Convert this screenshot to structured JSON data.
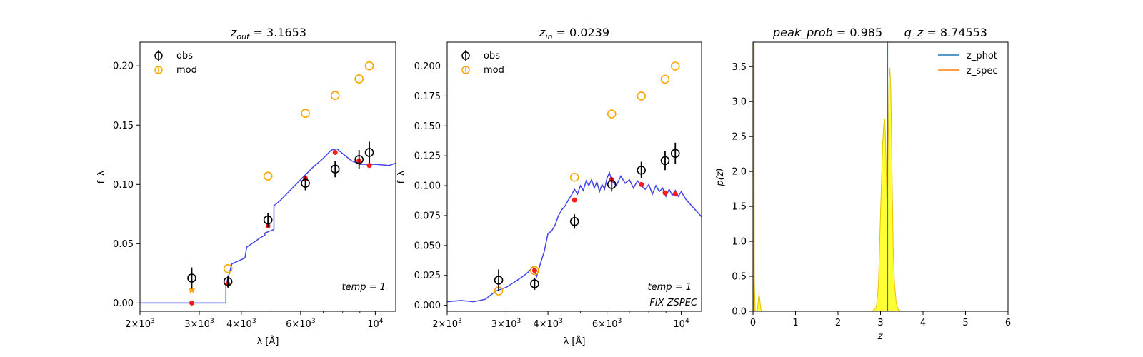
{
  "colors": {
    "obs": "#000000",
    "mod": "#ffa500",
    "model_dot": "#ff1a1a",
    "sed": "#3a3ae8",
    "z_phot": "#1f77b4",
    "z_spec": "#ff7f0e",
    "pz_fill": "#ffff33"
  },
  "chart_data": [
    {
      "type": "scatter",
      "title": "z_out = 3.1653",
      "title_parts": {
        "sym": "z",
        "sub": "out",
        "value": "= 3.1653"
      },
      "xlabel": "λ [Å]",
      "ylabel": "f_λ",
      "xscale": "log",
      "xlim": [
        2000,
        11500
      ],
      "ylim": [
        -0.007,
        0.22
      ],
      "xticks": [
        {
          "v": 2000,
          "m": "2",
          "e": "3"
        },
        {
          "v": 3000,
          "m": "3",
          "e": "3"
        },
        {
          "v": 4000,
          "m": "4",
          "e": "3"
        },
        {
          "v": 6000,
          "m": "6",
          "e": "3"
        },
        {
          "v": 10000,
          "m": "",
          "e": "4"
        }
      ],
      "yticks": [
        "0.00",
        "0.05",
        "0.10",
        "0.15",
        "0.20"
      ],
      "legend": [
        "obs",
        "mod"
      ],
      "legend_placement": "top-left",
      "annotations": [
        "temp = 1"
      ],
      "series": [
        {
          "name": "obs",
          "x": [
            2850,
            3650,
            4800,
            6200,
            7600,
            8950,
            9600
          ],
          "y": [
            0.021,
            0.018,
            0.07,
            0.101,
            0.113,
            0.121,
            0.127
          ],
          "err": [
            0.009,
            0.005,
            0.006,
            0.006,
            0.007,
            0.008,
            0.009
          ]
        },
        {
          "name": "mod",
          "x": [
            3650,
            4800,
            6200,
            7600,
            8950,
            9600
          ],
          "y": [
            0.029,
            0.107,
            0.16,
            0.175,
            0.189,
            0.2
          ]
        },
        {
          "name": "model",
          "x": [
            2850,
            3650,
            4800,
            6200,
            7600,
            8950,
            9600
          ],
          "y": [
            0.0,
            0.016,
            0.065,
            0.105,
            0.127,
            0.12,
            0.116
          ]
        },
        {
          "name": "star",
          "x": [
            2850
          ],
          "y": [
            0.011
          ]
        },
        {
          "name": "sed",
          "x": [
            2000,
            3600,
            3600,
            3750,
            4100,
            4150,
            4300,
            4450,
            4550,
            4700,
            4700,
            4800,
            5000,
            5000,
            5200,
            5500,
            6000,
            6500,
            7000,
            7400,
            7700,
            8000,
            8500,
            9000,
            10000,
            11000,
            11500
          ],
          "y": [
            0.0,
            0.0,
            0.015,
            0.033,
            0.038,
            0.047,
            0.05,
            0.053,
            0.055,
            0.057,
            0.059,
            0.06,
            0.062,
            0.082,
            0.086,
            0.093,
            0.104,
            0.114,
            0.122,
            0.129,
            0.13,
            0.126,
            0.12,
            0.117,
            0.117,
            0.116,
            0.118
          ]
        }
      ]
    },
    {
      "type": "scatter",
      "title": "z_in = 0.0239",
      "title_parts": {
        "sym": "z",
        "sub": "in",
        "value": "= 0.0239"
      },
      "xlabel": "λ [Å]",
      "ylabel": "f_λ",
      "xscale": "log",
      "xlim": [
        2000,
        11500
      ],
      "ylim": [
        -0.005,
        0.22
      ],
      "xticks": [
        {
          "v": 2000,
          "m": "2",
          "e": "3"
        },
        {
          "v": 3000,
          "m": "3",
          "e": "3"
        },
        {
          "v": 4000,
          "m": "4",
          "e": "3"
        },
        {
          "v": 6000,
          "m": "6",
          "e": "3"
        },
        {
          "v": 10000,
          "m": "",
          "e": "4"
        }
      ],
      "yticks": [
        "0.000",
        "0.025",
        "0.050",
        "0.075",
        "0.100",
        "0.125",
        "0.150",
        "0.175",
        "0.200"
      ],
      "legend": [
        "obs",
        "mod"
      ],
      "legend_placement": "top-left",
      "annotations": [
        "temp = 1",
        "FIX ZSPEC"
      ],
      "series": [
        {
          "name": "obs",
          "x": [
            2850,
            3650,
            4800,
            6200,
            7600,
            8950,
            9600
          ],
          "y": [
            0.021,
            0.018,
            0.07,
            0.101,
            0.113,
            0.121,
            0.127
          ],
          "err": [
            0.009,
            0.005,
            0.006,
            0.006,
            0.007,
            0.008,
            0.009
          ]
        },
        {
          "name": "mod",
          "x": [
            2850,
            3650,
            4800,
            6200,
            7600,
            8950,
            9600
          ],
          "y": [
            0.012,
            0.029,
            0.107,
            0.16,
            0.175,
            0.189,
            0.2
          ]
        },
        {
          "name": "model",
          "x": [
            3650,
            4800,
            6200,
            7600,
            8950,
            9600
          ],
          "y": [
            0.029,
            0.088,
            0.105,
            0.101,
            0.094,
            0.093
          ]
        },
        {
          "name": "sed",
          "x": [
            2000,
            2200,
            2400,
            2600,
            2800,
            3000,
            3200,
            3400,
            3500,
            3600,
            3700,
            3800,
            3900,
            4000,
            4100,
            4200,
            4300,
            4400,
            4500,
            4600,
            4700,
            4800,
            4900,
            5000,
            5100,
            5200,
            5300,
            5400,
            5500,
            5600,
            5700,
            5800,
            5900,
            6000,
            6100,
            6200,
            6400,
            6600,
            6800,
            7000,
            7200,
            7400,
            7600,
            7800,
            8000,
            8200,
            8400,
            8600,
            8800,
            9000,
            9200,
            9400,
            9600,
            9800,
            10000,
            10300,
            10600,
            11000,
            11500
          ],
          "y": [
            0.003,
            0.004,
            0.003,
            0.005,
            0.012,
            0.015,
            0.02,
            0.025,
            0.028,
            0.032,
            0.024,
            0.035,
            0.045,
            0.06,
            0.062,
            0.067,
            0.075,
            0.08,
            0.083,
            0.088,
            0.092,
            0.097,
            0.093,
            0.1,
            0.096,
            0.104,
            0.1,
            0.105,
            0.098,
            0.103,
            0.095,
            0.101,
            0.097,
            0.106,
            0.111,
            0.104,
            0.1,
            0.108,
            0.102,
            0.105,
            0.098,
            0.104,
            0.1,
            0.097,
            0.101,
            0.093,
            0.1,
            0.095,
            0.098,
            0.091,
            0.097,
            0.092,
            0.096,
            0.091,
            0.095,
            0.089,
            0.085,
            0.08,
            0.074
          ]
        }
      ]
    },
    {
      "type": "area",
      "title": "peak_prob = 0.985      q_z = 8.74553",
      "title_parts": {
        "a": "peak_prob",
        "a_val": "= 0.985",
        "b": "q_z",
        "b_val": "= 8.74553"
      },
      "xlabel": "z",
      "ylabel": "p(z)",
      "xlim": [
        0,
        6
      ],
      "ylim": [
        0,
        3.85
      ],
      "xticks": [
        "0",
        "1",
        "2",
        "3",
        "4",
        "5",
        "6"
      ],
      "yticks": [
        "0.0",
        "0.5",
        "1.0",
        "1.5",
        "2.0",
        "2.5",
        "3.0",
        "3.5"
      ],
      "legend": [
        "z_phot",
        "z_spec"
      ],
      "legend_placement": "top-right",
      "z_phot": 3.1653,
      "z_spec": 0.0239,
      "pz": {
        "x": [
          0.0,
          0.005,
          0.01,
          0.02,
          0.03,
          0.05,
          0.08,
          0.1,
          0.12,
          0.14,
          0.16,
          0.18,
          0.2,
          0.25,
          1.0,
          2.8,
          2.9,
          2.95,
          3.0,
          3.05,
          3.08,
          3.1,
          3.12,
          3.15,
          3.18,
          3.2,
          3.22,
          3.24,
          3.26,
          3.28,
          3.3,
          3.33,
          3.37,
          3.42,
          3.5,
          4.0,
          5.0
        ],
        "y": [
          0.0,
          3.0,
          3.85,
          3.85,
          0.5,
          0.0,
          0.0,
          0.02,
          0.12,
          0.25,
          0.18,
          0.05,
          0.0,
          0.0,
          0.0,
          0.0,
          0.05,
          0.35,
          1.4,
          2.4,
          2.7,
          2.75,
          2.4,
          1.6,
          2.4,
          3.3,
          3.48,
          3.2,
          2.5,
          1.6,
          0.9,
          0.4,
          0.12,
          0.02,
          0.0,
          0.0,
          0.0
        ]
      }
    }
  ]
}
